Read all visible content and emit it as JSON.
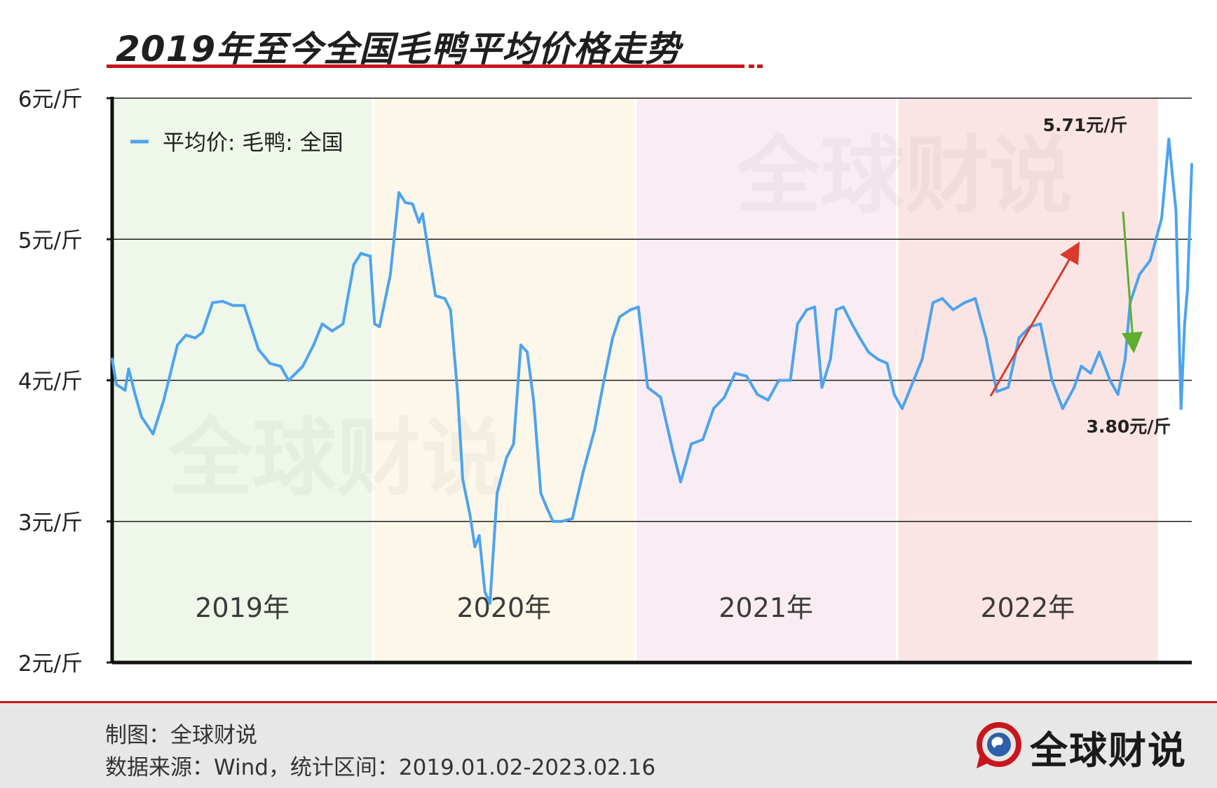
{
  "header": {
    "title": "2019年至今全国毛鸭平均价格走势"
  },
  "footer": {
    "credit": "制图：全球财说",
    "source": "数据来源：Wind，统计区间：2019.01.02-2023.02.16",
    "brand": "全球财说"
  },
  "watermark": "全球财说",
  "colors": {
    "line": "#4da3f0",
    "y2019": "#eef7e9",
    "y2020": "#fcf7e9",
    "y2021": "#f9edf3",
    "y2022": "#fbe5e4",
    "brand_red": "#c8161d",
    "arrow_up": "#d93a2b",
    "arrow_down": "#5fae2e"
  },
  "chart_data": {
    "type": "line",
    "title": "2019年至今全国毛鸭平均价格走势",
    "xlabel": "",
    "ylabel": "",
    "ylim": [
      2,
      6
    ],
    "yticks": [
      2,
      3,
      4,
      5,
      6
    ],
    "ytick_labels": [
      "2元/斤",
      "3元/斤",
      "4元/斤",
      "5元/斤",
      "6元/斤"
    ],
    "grid": true,
    "legend": {
      "position": "top-left",
      "label": "平均价: 毛鸭: 全国"
    },
    "x_range": [
      "2019-01-02",
      "2023-02-16"
    ],
    "year_bands": [
      {
        "label": "2019年",
        "start": "2019-01-01",
        "end": "2019-12-31",
        "color_key": "y2019"
      },
      {
        "label": "2020年",
        "start": "2020-01-01",
        "end": "2020-12-31",
        "color_key": "y2020"
      },
      {
        "label": "2021年",
        "start": "2021-01-01",
        "end": "2021-12-31",
        "color_key": "y2021"
      },
      {
        "label": "2022年",
        "start": "2022-01-01",
        "end": "2022-12-31",
        "color_key": "y2022"
      }
    ],
    "series": [
      {
        "name": "平均价: 毛鸭: 全国",
        "points": [
          [
            "2019-01-02",
            4.15
          ],
          [
            "2019-01-08",
            3.97
          ],
          [
            "2019-01-20",
            3.93
          ],
          [
            "2019-01-25",
            4.08
          ],
          [
            "2019-02-03",
            3.9
          ],
          [
            "2019-02-12",
            3.74
          ],
          [
            "2019-02-28",
            3.62
          ],
          [
            "2019-03-15",
            3.86
          ],
          [
            "2019-04-03",
            4.25
          ],
          [
            "2019-04-15",
            4.32
          ],
          [
            "2019-04-28",
            4.3
          ],
          [
            "2019-05-08",
            4.34
          ],
          [
            "2019-05-22",
            4.55
          ],
          [
            "2019-06-05",
            4.56
          ],
          [
            "2019-06-20",
            4.53
          ],
          [
            "2019-07-05",
            4.53
          ],
          [
            "2019-07-25",
            4.22
          ],
          [
            "2019-08-10",
            4.12
          ],
          [
            "2019-08-25",
            4.1
          ],
          [
            "2019-09-05",
            4.0
          ],
          [
            "2019-09-25",
            4.1
          ],
          [
            "2019-10-10",
            4.25
          ],
          [
            "2019-10-22",
            4.4
          ],
          [
            "2019-11-05",
            4.35
          ],
          [
            "2019-11-20",
            4.4
          ],
          [
            "2019-12-05",
            4.82
          ],
          [
            "2019-12-15",
            4.9
          ],
          [
            "2019-12-28",
            4.88
          ],
          [
            "2020-01-03",
            4.4
          ],
          [
            "2020-01-10",
            4.38
          ],
          [
            "2020-01-25",
            4.75
          ],
          [
            "2020-02-06",
            5.33
          ],
          [
            "2020-02-15",
            5.26
          ],
          [
            "2020-02-25",
            5.25
          ],
          [
            "2020-03-05",
            5.12
          ],
          [
            "2020-03-10",
            5.18
          ],
          [
            "2020-03-20",
            4.85
          ],
          [
            "2020-03-28",
            4.6
          ],
          [
            "2020-04-10",
            4.58
          ],
          [
            "2020-04-18",
            4.5
          ],
          [
            "2020-04-28",
            3.9
          ],
          [
            "2020-05-05",
            3.3
          ],
          [
            "2020-05-15",
            3.05
          ],
          [
            "2020-05-22",
            2.82
          ],
          [
            "2020-05-28",
            2.9
          ],
          [
            "2020-06-05",
            2.5
          ],
          [
            "2020-06-12",
            2.42
          ],
          [
            "2020-06-22",
            3.2
          ],
          [
            "2020-07-05",
            3.45
          ],
          [
            "2020-07-15",
            3.55
          ],
          [
            "2020-07-25",
            4.25
          ],
          [
            "2020-08-03",
            4.2
          ],
          [
            "2020-08-12",
            3.85
          ],
          [
            "2020-08-22",
            3.2
          ],
          [
            "2020-08-30",
            3.1
          ],
          [
            "2020-09-08",
            3.0
          ],
          [
            "2020-09-20",
            3.0
          ],
          [
            "2020-10-05",
            3.02
          ],
          [
            "2020-10-20",
            3.35
          ],
          [
            "2020-11-05",
            3.65
          ],
          [
            "2020-11-18",
            4.0
          ],
          [
            "2020-11-30",
            4.3
          ],
          [
            "2020-12-10",
            4.45
          ],
          [
            "2020-12-25",
            4.5
          ],
          [
            "2021-01-05",
            4.52
          ],
          [
            "2021-01-18",
            3.95
          ],
          [
            "2021-02-05",
            3.88
          ],
          [
            "2021-02-22",
            3.5
          ],
          [
            "2021-03-05",
            3.28
          ],
          [
            "2021-03-20",
            3.55
          ],
          [
            "2021-04-05",
            3.58
          ],
          [
            "2021-04-20",
            3.8
          ],
          [
            "2021-05-05",
            3.88
          ],
          [
            "2021-05-20",
            4.05
          ],
          [
            "2021-06-05",
            4.03
          ],
          [
            "2021-06-20",
            3.9
          ],
          [
            "2021-07-05",
            3.86
          ],
          [
            "2021-07-20",
            4.0
          ],
          [
            "2021-08-05",
            4.0
          ],
          [
            "2021-08-15",
            4.4
          ],
          [
            "2021-08-28",
            4.5
          ],
          [
            "2021-09-08",
            4.52
          ],
          [
            "2021-09-18",
            3.95
          ],
          [
            "2021-09-30",
            4.15
          ],
          [
            "2021-10-08",
            4.5
          ],
          [
            "2021-10-18",
            4.52
          ],
          [
            "2021-10-30",
            4.4
          ],
          [
            "2021-11-10",
            4.3
          ],
          [
            "2021-11-22",
            4.2
          ],
          [
            "2021-12-05",
            4.15
          ],
          [
            "2021-12-18",
            4.12
          ],
          [
            "2021-12-28",
            3.9
          ],
          [
            "2022-01-08",
            3.8
          ],
          [
            "2022-01-20",
            3.95
          ],
          [
            "2022-02-05",
            4.15
          ],
          [
            "2022-02-20",
            4.55
          ],
          [
            "2022-03-05",
            4.58
          ],
          [
            "2022-03-20",
            4.5
          ],
          [
            "2022-04-05",
            4.55
          ],
          [
            "2022-04-20",
            4.58
          ],
          [
            "2022-05-05",
            4.3
          ],
          [
            "2022-05-20",
            3.92
          ],
          [
            "2022-06-05",
            3.95
          ],
          [
            "2022-06-20",
            4.3
          ],
          [
            "2022-07-05",
            4.38
          ],
          [
            "2022-07-20",
            4.4
          ],
          [
            "2022-08-05",
            4.0
          ],
          [
            "2022-08-20",
            3.8
          ],
          [
            "2022-09-05",
            3.95
          ],
          [
            "2022-09-15",
            4.1
          ],
          [
            "2022-09-28",
            4.05
          ],
          [
            "2022-10-10",
            4.2
          ],
          [
            "2022-10-25",
            4.0
          ],
          [
            "2022-11-05",
            3.9
          ],
          [
            "2022-11-15",
            4.15
          ],
          [
            "2022-11-22",
            4.55
          ],
          [
            "2022-12-05",
            4.75
          ],
          [
            "2022-12-20",
            4.85
          ],
          [
            "2023-01-05",
            5.15
          ],
          [
            "2023-01-15",
            5.71
          ],
          [
            "2023-01-25",
            5.2
          ],
          [
            "2023-02-01",
            3.8
          ],
          [
            "2023-02-06",
            4.4
          ],
          [
            "2023-02-10",
            4.65
          ],
          [
            "2023-02-16",
            5.53
          ]
        ]
      }
    ],
    "annotations": [
      {
        "text": "5.71元/斤",
        "x": "2023-01-15",
        "y": 5.71
      },
      {
        "text": "3.80元/斤",
        "x": "2023-02-01",
        "y": 3.8
      }
    ]
  }
}
